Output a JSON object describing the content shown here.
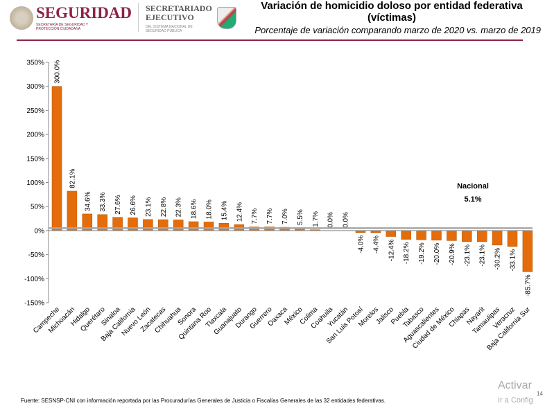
{
  "header": {
    "logo_main": "SEGURIDAD",
    "logo_sub": "SECRETARÍA DE SEGURIDAD Y PROTECCIÓN CIUDADANA",
    "logo2_main": "SECRETARIADO EJECUTIVO",
    "logo2_sub": "DEL SISTEMA NACIONAL DE SEGURIDAD PÚBLICA",
    "title": "Variación de homicidio doloso por entidad federativa (víctimas)",
    "subtitle": "Porcentaje de variación comparando marzo de 2020 vs. marzo de 2019"
  },
  "footer": {
    "source": "Fuente: SESNSP-CNI con información reportada por las Procuradurías Generales de Justicia o Fiscalías Generales de las 32 entidades federativas.",
    "watermark1": "Activar",
    "watermark2": "Ir a Config",
    "page": "14"
  },
  "chart_data": {
    "type": "bar",
    "ylim": [
      -150,
      350
    ],
    "yticks": [
      "350%",
      "300%",
      "250%",
      "200%",
      "150%",
      "100%",
      "50%",
      "0%",
      "-50%",
      "-100%",
      "-150%"
    ],
    "categories": [
      "Campeche",
      "Michoacán",
      "Hidalgo",
      "Querétaro",
      "Sinaloa",
      "Baja California",
      "Nuevo León",
      "Zacatecas",
      "Chihuahua",
      "Sonora",
      "Quintana Roo",
      "Tlaxcala",
      "Guanajuato",
      "Durango",
      "Guerrero",
      "Oaxaca",
      "México",
      "Colima",
      "Coahuila",
      "Yucatán",
      "San Luis Potosí",
      "Morelos",
      "Jalisco",
      "Puebla",
      "Tabasco",
      "Aguascalientes",
      "Ciudad de México",
      "Chiapas",
      "Nayarit",
      "Tamaulipas",
      "Veracruz",
      "Baja California Sur"
    ],
    "values": [
      300.0,
      82.1,
      34.6,
      33.3,
      27.6,
      26.6,
      23.1,
      22.8,
      22.3,
      18.6,
      18.0,
      15.4,
      12.4,
      7.7,
      7.7,
      7.0,
      5.5,
      1.7,
      0.0,
      0.0,
      -4.0,
      -4.4,
      -12.4,
      -18.2,
      -19.2,
      -20.0,
      -20.9,
      -23.1,
      -23.1,
      -30.2,
      -33.1,
      -85.7
    ],
    "data_labels": [
      "300.0%",
      "82.1%",
      "34.6%",
      "33.3%",
      "27.6%",
      "26.6%",
      "23.1%",
      "22.8%",
      "22.3%",
      "18.6%",
      "18.0%",
      "15.4%",
      "12.4%",
      "7.7%",
      "7.7%",
      "7.0%",
      "5.5%",
      "1.7%",
      "0.0%",
      "0.0%",
      "-4.0%",
      "-4.4%",
      "-12.4%",
      "-18.2%",
      "-19.2%",
      "-20.0%",
      "-20.9%",
      "-23.1%",
      "-23.1%",
      "-30.2%",
      "-33.1%",
      "-85.7%"
    ],
    "reference_line": {
      "label": "Nacional",
      "value": 5.1,
      "value_label": "5.1%"
    },
    "bar_color": "#e46c0a",
    "grid": false
  }
}
